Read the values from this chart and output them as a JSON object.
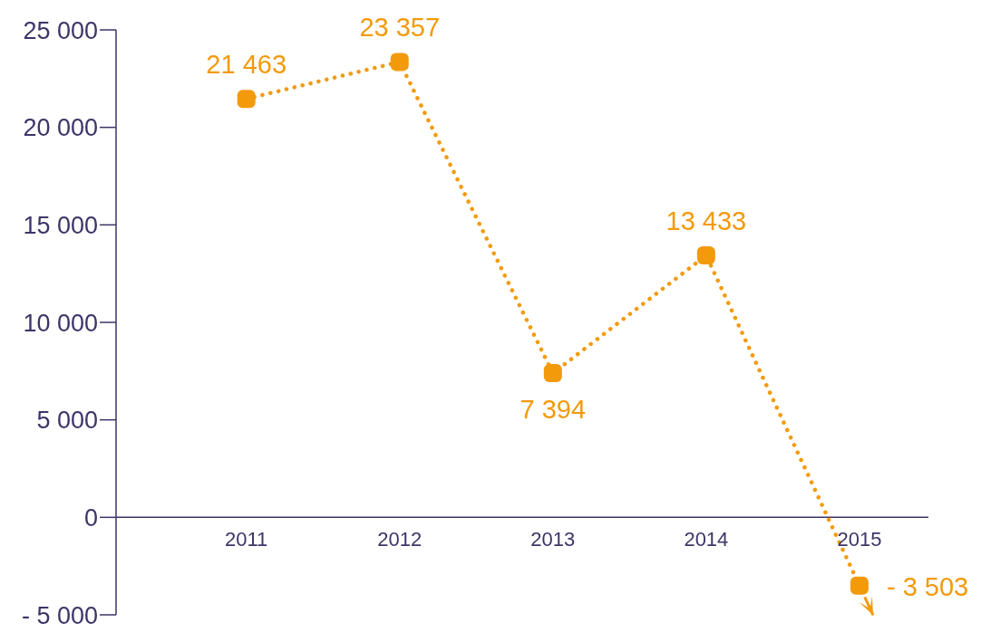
{
  "chart_data": {
    "type": "line",
    "categories": [
      "2011",
      "2012",
      "2013",
      "2014",
      "2015"
    ],
    "series": [
      {
        "color": "#f39a0b",
        "values": [
          21463,
          23357,
          7394,
          13433,
          -3503
        ],
        "value_labels": [
          "21 463",
          "23 357",
          "7 394",
          "13 433",
          "- 3 503"
        ]
      }
    ],
    "ylim": [
      -5000,
      25000
    ],
    "yticks": [
      {
        "value": -5000,
        "label": "- 5 000"
      },
      {
        "value": 0,
        "label": "0"
      },
      {
        "value": 5000,
        "label": "5 000"
      },
      {
        "value": 10000,
        "label": "10 000"
      },
      {
        "value": 15000,
        "label": "15 000"
      },
      {
        "value": 20000,
        "label": "20 000"
      },
      {
        "value": 25000,
        "label": "25 000"
      }
    ],
    "grid": false,
    "legend": false,
    "marker": "square",
    "line_style": "dotted"
  }
}
